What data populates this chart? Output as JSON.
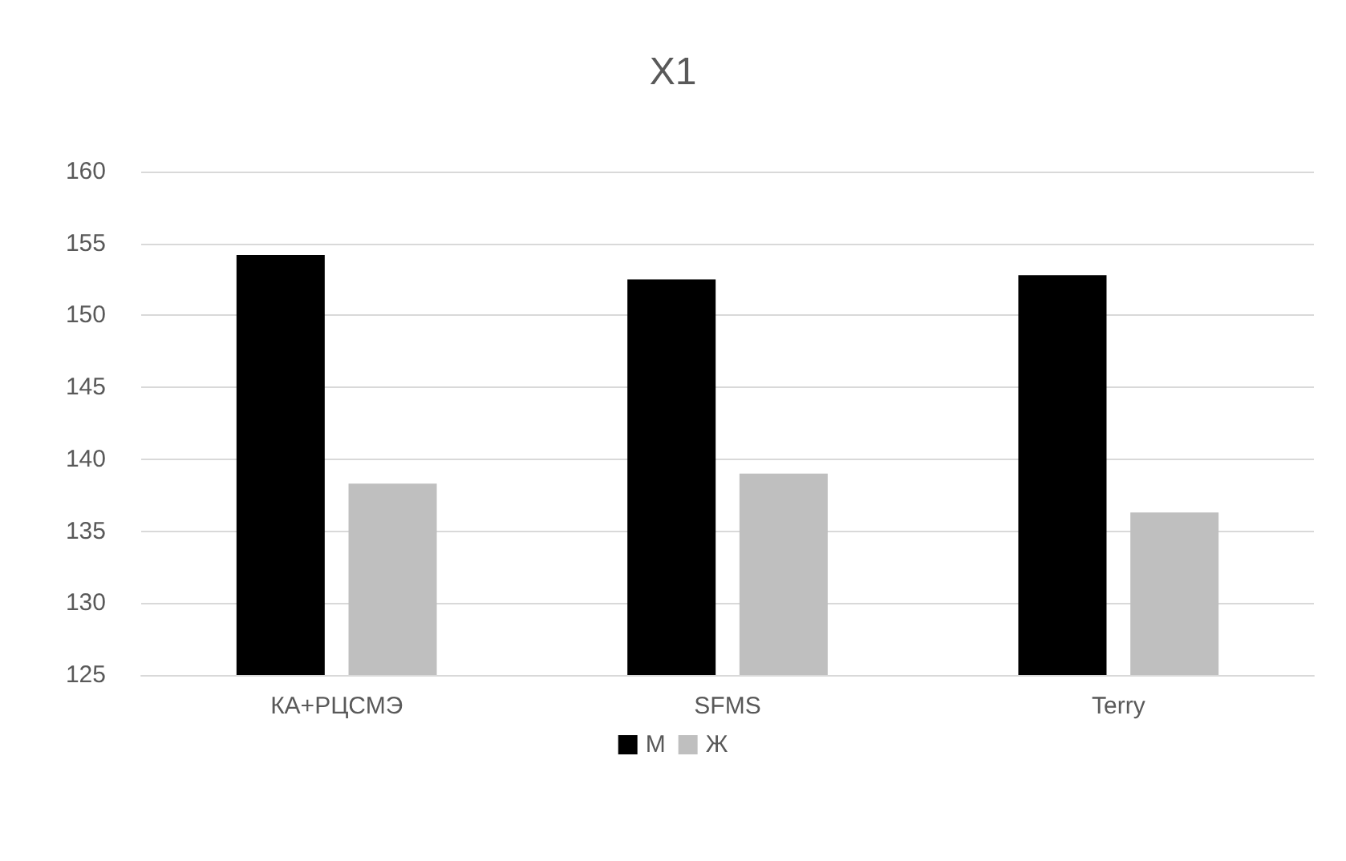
{
  "chart_data": {
    "type": "bar",
    "title": "X1",
    "categories": [
      "КА+РЦСМЭ",
      "SFMS",
      "Terry"
    ],
    "series": [
      {
        "name": "М",
        "color": "#000000",
        "values": [
          154.2,
          152.5,
          152.8
        ]
      },
      {
        "name": "Ж",
        "color": "#bfbfbf",
        "values": [
          138.3,
          139.0,
          136.3
        ]
      }
    ],
    "ylim": [
      125,
      160
    ],
    "yticks": [
      125,
      130,
      135,
      140,
      145,
      150,
      155,
      160
    ],
    "grid": "y",
    "legend": "bottom"
  }
}
